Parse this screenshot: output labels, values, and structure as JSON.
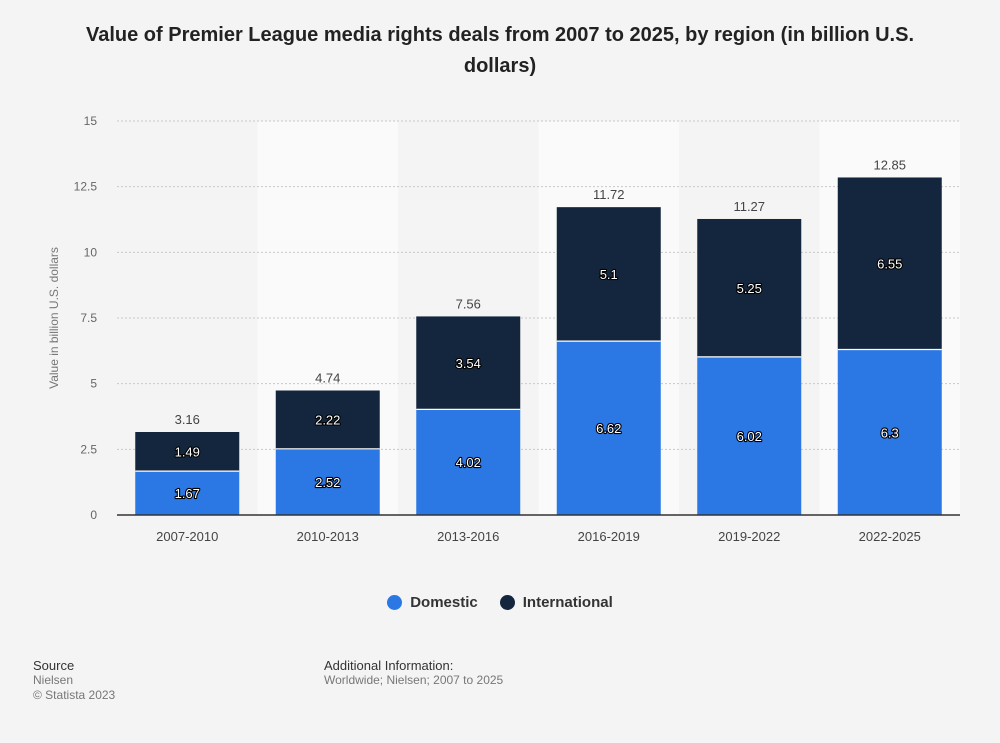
{
  "title": "Value of Premier League media rights deals from 2007 to 2025, by region (in billion U.S. dollars)",
  "colors": {
    "domestic": "#2b78e4",
    "international": "#14263d"
  },
  "chart_data": {
    "type": "bar",
    "stacked": true,
    "categories": [
      "2007-2010",
      "2010-2013",
      "2013-2016",
      "2016-2019",
      "2019-2022",
      "2022-2025"
    ],
    "series": [
      {
        "name": "Domestic",
        "values": [
          1.67,
          2.52,
          4.02,
          6.62,
          6.02,
          6.3
        ]
      },
      {
        "name": "International",
        "values": [
          1.49,
          2.22,
          3.54,
          5.1,
          5.25,
          6.55
        ]
      }
    ],
    "totals": [
      3.16,
      4.74,
      7.56,
      11.72,
      11.27,
      12.85
    ],
    "xlabel": "",
    "ylabel": "Value in billion U.S. dollars",
    "ylim": [
      0,
      15
    ],
    "yticks": [
      "0",
      "2.5",
      "5",
      "7.5",
      "10",
      "12.5",
      "15"
    ],
    "ytick_values": [
      0,
      2.5,
      5,
      7.5,
      10,
      12.5,
      15
    ],
    "grid": true,
    "legend_position": "bottom"
  },
  "legend": {
    "domestic": "Domestic",
    "international": "International"
  },
  "footer": {
    "source_heading": "Source",
    "source_name": "Nielsen",
    "copyright": "© Statista 2023",
    "info_heading": "Additional Information:",
    "info_text": "Worldwide; Nielsen; 2007 to 2025"
  }
}
